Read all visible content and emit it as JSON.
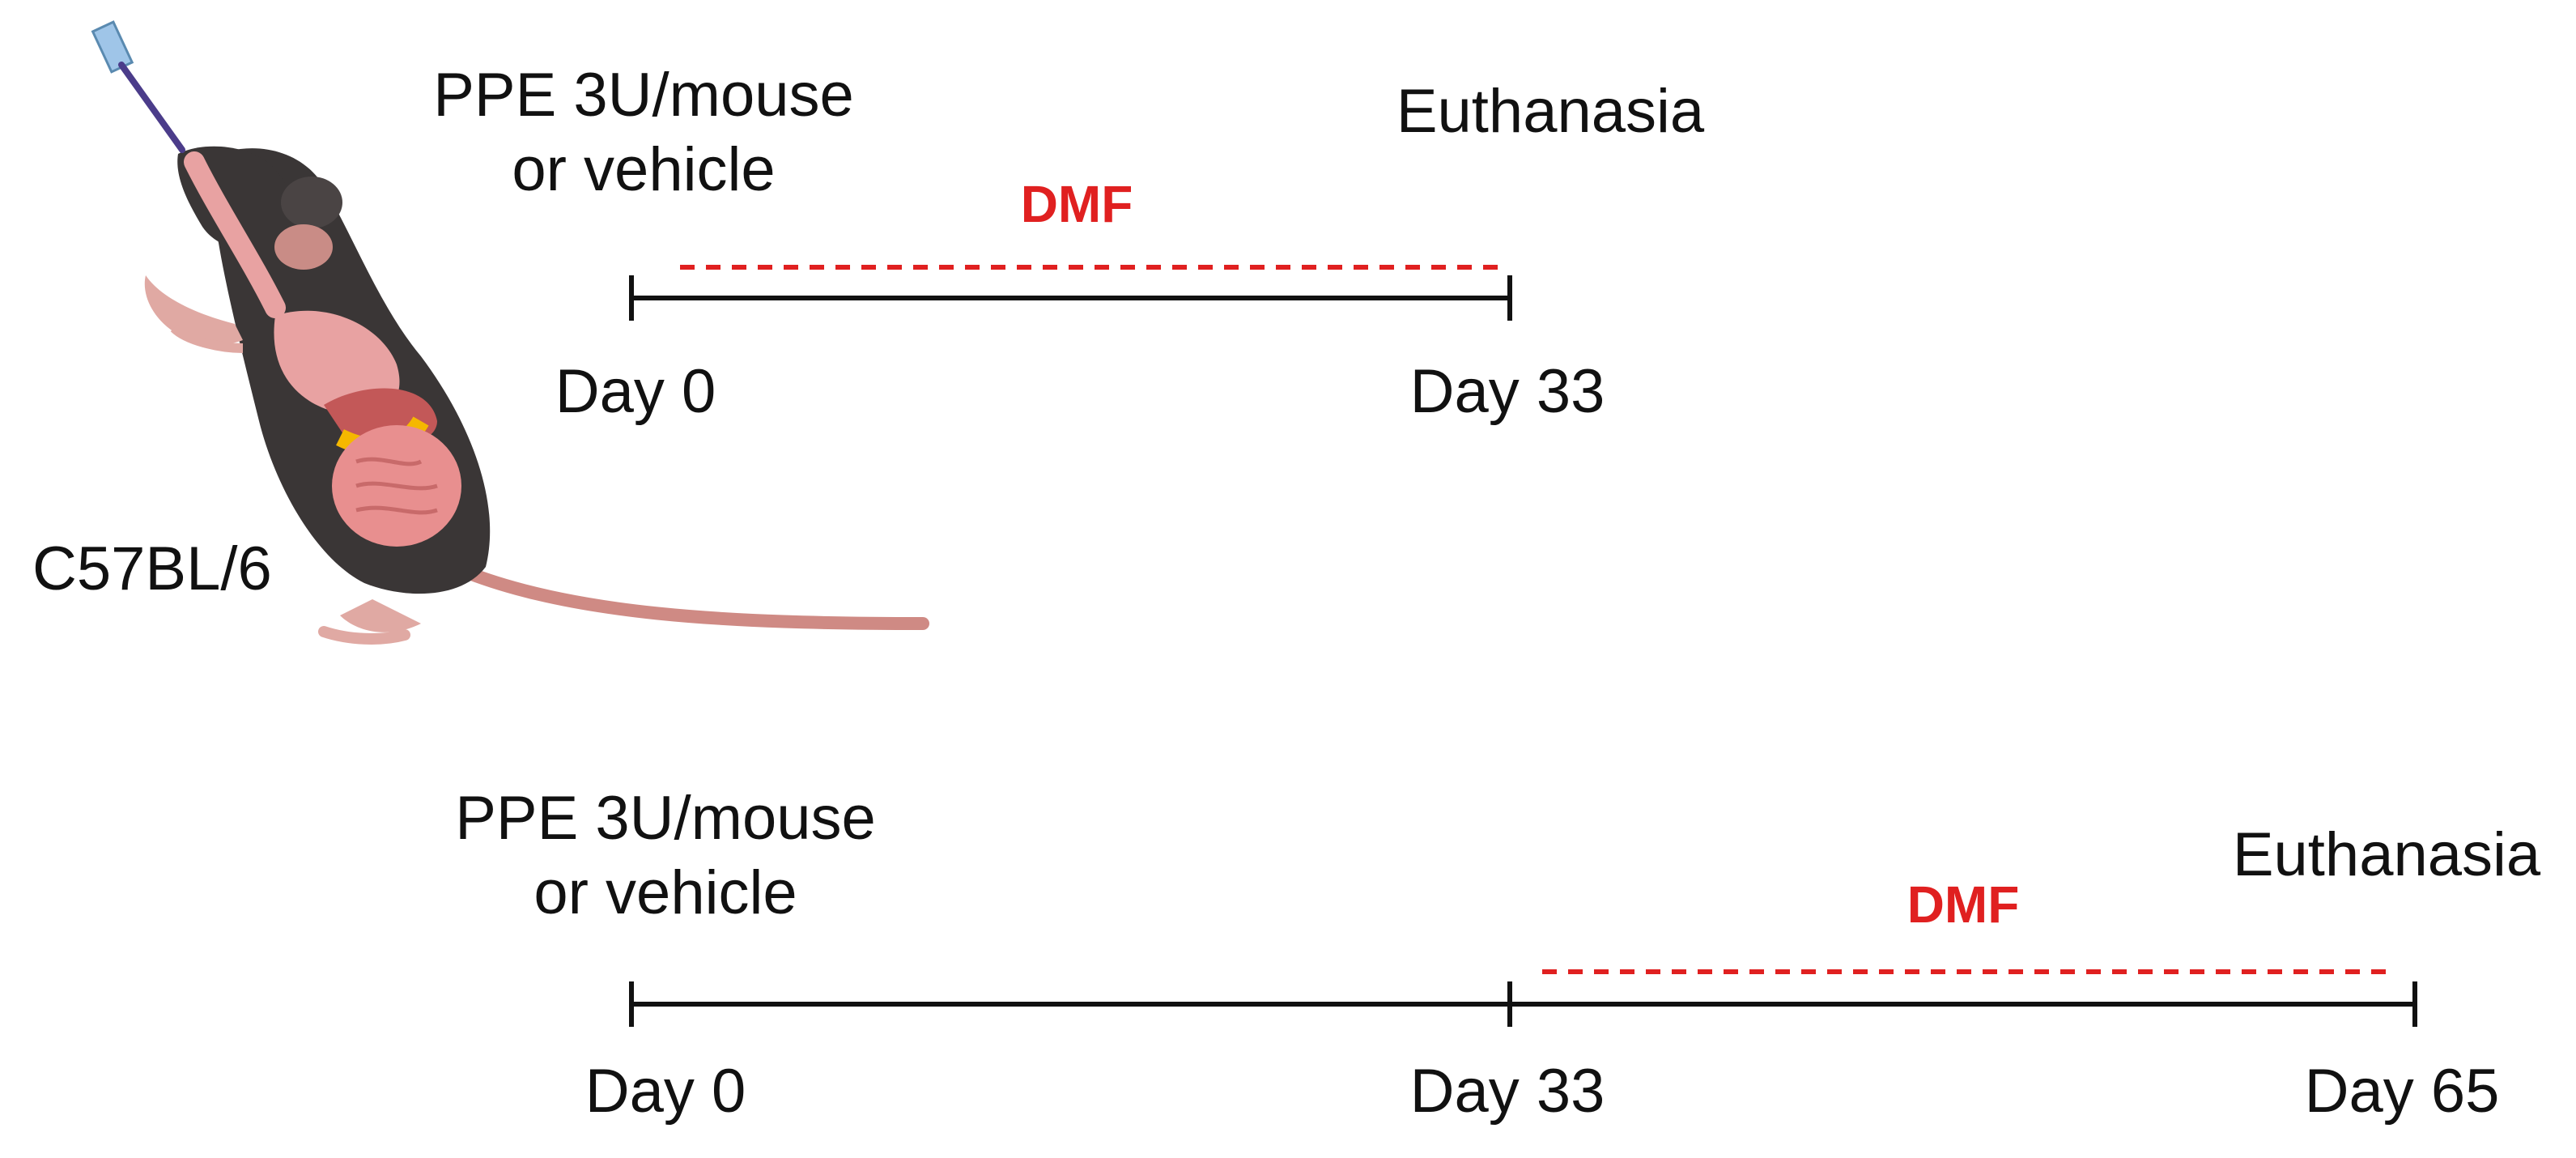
{
  "strain": "C57BL/6",
  "protocols": [
    {
      "induction": [
        "PPE 3U/mouse",
        "or vehicle"
      ],
      "treatment": "DMF",
      "endpoint": "Euthanasia",
      "days": [
        "Day 0",
        "Day 33"
      ],
      "treatment_span": [
        "Day 0",
        "Day 33"
      ]
    },
    {
      "induction": [
        "PPE 3U/mouse",
        "or vehicle"
      ],
      "treatment": "DMF",
      "endpoint": "Euthanasia",
      "days": [
        "Day 0",
        "Day 33",
        "Day 65"
      ],
      "treatment_span": [
        "Day 33",
        "Day 65"
      ]
    }
  ],
  "colors": {
    "timeline": "#111111",
    "treatment": "#e02020",
    "mouse_fur": "#3a3636",
    "organs": "#e8a2a2",
    "tail": "#cf8a84"
  },
  "icons": [
    "mouse-illustration-icon",
    "pipette-icon"
  ]
}
